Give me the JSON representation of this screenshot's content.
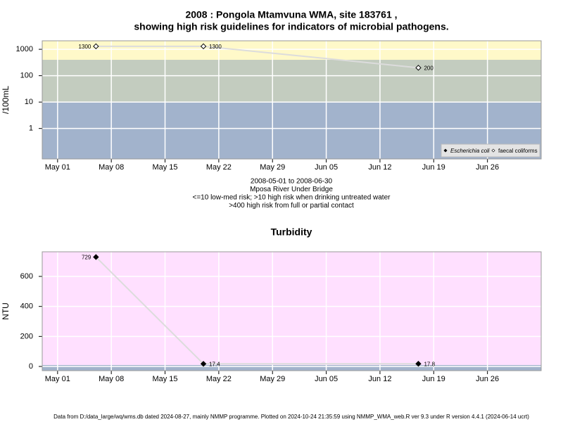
{
  "chart_data": [
    {
      "type": "scatter",
      "title": "2008 : Pongola Mtamvuna WMA, site 183761 ,",
      "subtitle": "showing high risk guidelines for indicators of microbial pathogens.",
      "ylabel": "/100mL",
      "notes": [
        "2008-05-01 to 2008-06-30",
        "Mposa River Under Bridge",
        "<=10 low-med risk; >10 high risk when drinking untreated water",
        ">400 high risk from full or partial contact"
      ],
      "log_y": true,
      "xlim": [
        "Apr 29",
        "Jul 03"
      ],
      "xticks": [
        "May 01",
        "May 08",
        "May 15",
        "May 22",
        "May 29",
        "Jun 05",
        "Jun 12",
        "Jun 19",
        "Jun 26"
      ],
      "ylim": [
        0.07,
        2100
      ],
      "yticks": [
        1,
        10,
        100,
        1000
      ],
      "grid": true,
      "bands": [
        {
          "to": 10,
          "color": "#a2b3cc"
        },
        {
          "from": 10,
          "to": 400,
          "color": "#c3ccbf"
        },
        {
          "from": 400,
          "color": "#fff9c9"
        }
      ],
      "line_color": "#dcdcdc",
      "legend": "lower right",
      "series": [
        {
          "name": "Escherichia coli",
          "color": "#000000",
          "marker": "filled-diamond",
          "x": [],
          "values": []
        },
        {
          "name": "faecal coliforms",
          "color": "#000000",
          "marker": "open-diamond",
          "x": [
            "May 06",
            "May 20",
            "Jun 17"
          ],
          "values": [
            1300,
            1300,
            200
          ]
        }
      ]
    },
    {
      "type": "scatter",
      "title": "Turbidity",
      "ylabel": "NTU",
      "log_y": false,
      "xlim": [
        "Apr 29",
        "Jul 03"
      ],
      "xticks": [
        "May 01",
        "May 08",
        "May 15",
        "May 22",
        "May 29",
        "Jun 05",
        "Jun 12",
        "Jun 19",
        "Jun 26"
      ],
      "ylim": [
        -28,
        764
      ],
      "yticks": [
        0,
        200,
        400,
        600
      ],
      "grid": true,
      "bands": [
        {
          "to": 10,
          "color": "#a2b3cc"
        },
        {
          "from": 10,
          "color": "#ffe0ff"
        }
      ],
      "line_color": "#dcdcdc",
      "series": [
        {
          "name": "Turbidity",
          "color": "#000000",
          "marker": "filled-diamond",
          "x": [
            "May 06",
            "May 20",
            "Jun 17"
          ],
          "values": [
            729,
            17.4,
            17.8
          ]
        }
      ]
    }
  ],
  "footer": "Data from D:/data_large/wq/wms.db dated 2024-08-27, mainly NMMP programme. Plotted on 2024-10-24 21:35:59 using NMMP_WMA_web.R ver 9.3 under R version 4.4.1 (2024-06-14 ucrt)"
}
